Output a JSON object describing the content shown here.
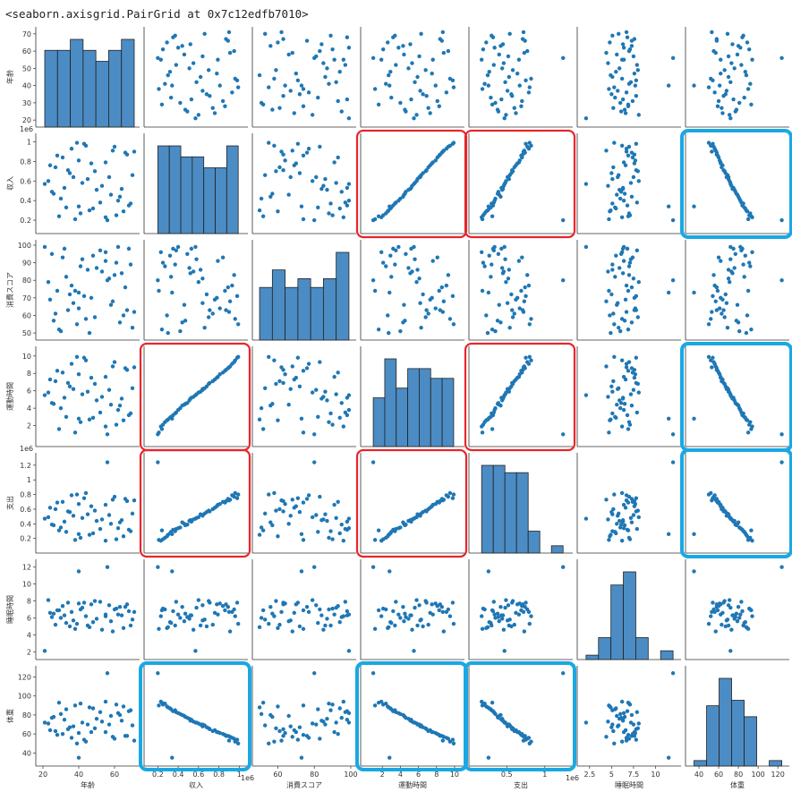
{
  "header": {
    "text": "<seaborn.axisgrid.PairGrid at 0x7c12edfb7010>"
  },
  "colors": {
    "point": "#1f77b4",
    "bar": "#4c8cc4",
    "bar_edge": "#222222",
    "highlight_red": "#e8262b",
    "highlight_blue": "#1aa8e4"
  },
  "chart_data": {
    "type": "scatter",
    "grid": false,
    "variables": [
      {
        "name": "年齢",
        "ticks": [
          20,
          40,
          60
        ],
        "yticks": [
          20,
          30,
          40,
          50,
          60,
          70
        ],
        "range": [
          18,
          72
        ],
        "sci": ""
      },
      {
        "name": "収入",
        "ticks": [
          0.2,
          0.4,
          0.6,
          0.8,
          1.0
        ],
        "yticks": [
          0.2,
          0.4,
          0.6,
          0.8,
          1.0
        ],
        "range": [
          0.1,
          1.05
        ],
        "sci": "1e6"
      },
      {
        "name": "消費スコア",
        "ticks": [
          60,
          80,
          100
        ],
        "yticks": [
          50,
          60,
          70,
          80,
          90,
          100
        ],
        "range": [
          48,
          101
        ],
        "sci": ""
      },
      {
        "name": "運動時間",
        "ticks": [
          2,
          4,
          6,
          8,
          10
        ],
        "yticks": [
          2,
          4,
          6,
          8,
          10
        ],
        "range": [
          0,
          10.7
        ],
        "sci": ""
      },
      {
        "name": "支出",
        "ticks": [
          0.5,
          1.0
        ],
        "yticks": [
          0.2,
          0.4,
          0.6,
          0.8,
          1.0,
          1.2
        ],
        "range": [
          0.05,
          1.32
        ],
        "sci": "1e6"
      },
      {
        "name": "睡眠時間",
        "ticks": [
          2.5,
          5.0,
          7.5,
          10.0
        ],
        "yticks": [
          2,
          4,
          6,
          8,
          10,
          12
        ],
        "range": [
          1.5,
          12.5
        ],
        "sci": ""
      },
      {
        "name": "体重",
        "ticks": [
          40,
          60,
          80,
          100,
          120
        ],
        "yticks": [
          40,
          60,
          80,
          100,
          120
        ],
        "range": [
          30,
          128
        ],
        "sci": ""
      }
    ],
    "rows": [
      [
        43,
        0.98,
        71,
        9.8,
        0.75,
        7.8,
        54
      ],
      [
        29,
        0.24,
        52,
        1.6,
        0.31,
        6.9,
        93
      ],
      [
        45,
        0.62,
        86,
        5.9,
        0.53,
        5.1,
        70
      ],
      [
        63,
        0.44,
        56,
        4.3,
        0.42,
        7.3,
        80
      ],
      [
        21,
        0.57,
        99,
        5.5,
        0.47,
        2.1,
        72
      ],
      [
        38,
        0.21,
        74,
        1.2,
        0.18,
        4.7,
        90
      ],
      [
        55,
        0.79,
        91,
        7.6,
        0.66,
        6.4,
        62
      ],
      [
        67,
        0.87,
        63,
        8.4,
        0.71,
        7.6,
        58
      ],
      [
        33,
        0.33,
        82,
        3.0,
        0.29,
        5.4,
        86
      ],
      [
        49,
        0.7,
        59,
        6.8,
        0.58,
        8.0,
        66
      ],
      [
        25,
        0.49,
        95,
        4.6,
        0.39,
        6.1,
        77
      ],
      [
        59,
        0.91,
        68,
        8.8,
        0.73,
        4.4,
        57
      ],
      [
        41,
        0.27,
        88,
        2.4,
        0.21,
        7.0,
        92
      ],
      [
        70,
        0.66,
        53,
        6.3,
        0.54,
        5.8,
        69
      ],
      [
        36,
        0.93,
        77,
        9.1,
        0.79,
        6.7,
        56
      ],
      [
        52,
        0.38,
        97,
        3.5,
        0.33,
        7.9,
        83
      ],
      [
        27,
        0.74,
        61,
        7.1,
        0.6,
        5.2,
        63
      ],
      [
        64,
        0.52,
        84,
        5.1,
        0.45,
        6.3,
        74
      ],
      [
        46,
        0.3,
        50,
        2.7,
        0.25,
        4.9,
        88
      ],
      [
        31,
        0.84,
        93,
        8.1,
        0.7,
        7.4,
        60
      ],
      [
        58,
        0.46,
        66,
        4.4,
        0.4,
        5.6,
        79
      ],
      [
        23,
        0.6,
        79,
        5.8,
        0.49,
        8.1,
        71
      ],
      [
        44,
        0.96,
        58,
        9.5,
        0.82,
        6.2,
        52
      ],
      [
        61,
        0.25,
        90,
        2.1,
        0.19,
        7.1,
        91
      ],
      [
        35,
        0.68,
        72,
        6.5,
        0.56,
        5.0,
        67
      ],
      [
        68,
        0.35,
        98,
        3.2,
        0.32,
        6.8,
        84
      ],
      [
        40,
        0.81,
        64,
        7.9,
        0.67,
        7.7,
        61
      ],
      [
        53,
        0.55,
        85,
        5.3,
        0.46,
        4.6,
        73
      ],
      [
        30,
        0.42,
        51,
        4.0,
        0.35,
        6.0,
        81
      ],
      [
        66,
        0.89,
        76,
        8.6,
        0.74,
        7.3,
        58
      ],
      [
        48,
        0.32,
        94,
        2.9,
        0.27,
        5.5,
        87
      ],
      [
        24,
        0.76,
        69,
        7.3,
        0.62,
        6.6,
        64
      ],
      [
        57,
        0.64,
        81,
        6.1,
        0.52,
        7.5,
        70
      ],
      [
        39,
        0.99,
        55,
        9.9,
        0.8,
        5.3,
        50
      ],
      [
        62,
        0.4,
        99,
        3.8,
        0.34,
        6.4,
        82
      ],
      [
        34,
        0.71,
        63,
        6.9,
        0.57,
        7.8,
        65
      ],
      [
        50,
        0.51,
        87,
        4.9,
        0.44,
        5.9,
        76
      ],
      [
        28,
        0.86,
        74,
        8.3,
        0.69,
        6.9,
        59
      ],
      [
        65,
        0.29,
        60,
        2.6,
        0.23,
        4.8,
        89
      ],
      [
        42,
        0.58,
        92,
        5.6,
        0.48,
        7.2,
        72
      ],
      [
        55,
        0.23,
        96,
        1.9,
        0.17,
        6.2,
        94
      ],
      [
        37,
        0.64,
        67,
        6.2,
        0.51,
        5.7,
        68
      ],
      [
        60,
        0.95,
        83,
        9.3,
        0.77,
        7.0,
        55
      ],
      [
        26,
        0.47,
        57,
        4.5,
        0.38,
        6.5,
        78
      ],
      [
        69,
        0.37,
        89,
        3.4,
        0.3,
        5.1,
        85
      ],
      [
        47,
        0.78,
        70,
        7.5,
        0.64,
        7.6,
        62
      ],
      [
        32,
        0.53,
        98,
        5.2,
        0.43,
        6.3,
        75
      ],
      [
        56,
        0.2,
        80,
        1.0,
        1.24,
        12.0,
        124
      ],
      [
        40,
        0.34,
        73,
        2.8,
        0.26,
        11.5,
        35
      ],
      [
        71,
        0.9,
        62,
        8.7,
        0.72,
        6.7,
        53
      ]
    ],
    "highlights": {
      "red": [
        [
          1,
          3
        ],
        [
          1,
          4
        ],
        [
          3,
          1
        ],
        [
          3,
          4
        ],
        [
          4,
          1
        ],
        [
          4,
          3
        ]
      ],
      "blue": [
        [
          1,
          6
        ],
        [
          3,
          6
        ],
        [
          4,
          6
        ],
        [
          6,
          1
        ],
        [
          6,
          3
        ],
        [
          6,
          4
        ]
      ]
    }
  }
}
